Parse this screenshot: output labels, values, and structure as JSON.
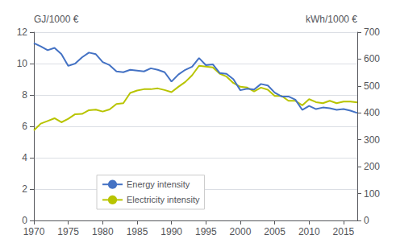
{
  "chart_data": {
    "type": "line",
    "x": [
      1970,
      1971,
      1972,
      1973,
      1974,
      1975,
      1976,
      1977,
      1978,
      1979,
      1980,
      1981,
      1982,
      1983,
      1984,
      1985,
      1986,
      1987,
      1988,
      1989,
      1990,
      1991,
      1992,
      1993,
      1994,
      1995,
      1996,
      1997,
      1998,
      1999,
      2000,
      2001,
      2002,
      2003,
      2004,
      2005,
      2006,
      2007,
      2008,
      2009,
      2010,
      2011,
      2012,
      2013,
      2014,
      2015,
      2016,
      2017
    ],
    "series": [
      {
        "name": "Energy intensity",
        "color": "#4472c4",
        "values": [
          11.3,
          11.1,
          10.85,
          11.0,
          10.6,
          9.85,
          10.0,
          10.4,
          10.7,
          10.6,
          10.1,
          9.9,
          9.5,
          9.45,
          9.6,
          9.55,
          9.5,
          9.7,
          9.6,
          9.45,
          8.85,
          9.3,
          9.6,
          9.8,
          10.35,
          9.9,
          9.95,
          9.4,
          9.35,
          9.0,
          8.3,
          8.4,
          8.35,
          8.7,
          8.6,
          8.15,
          7.9,
          7.9,
          7.7,
          7.05,
          7.3,
          7.1,
          7.2,
          7.15,
          7.05,
          7.1,
          7.0,
          6.85
        ]
      },
      {
        "name": "Electricity intensity",
        "color": "#b8c400",
        "axis": "y2",
        "values": [
          335,
          360,
          370,
          380,
          365,
          378,
          395,
          396,
          410,
          412,
          405,
          413,
          433,
          436,
          474,
          483,
          488,
          488,
          491,
          485,
          477,
          497,
          515,
          540,
          575,
          572,
          569,
          546,
          535,
          511,
          497,
          494,
          480,
          494,
          486,
          463,
          463,
          445,
          445,
          428,
          451,
          440,
          436,
          445,
          436,
          442,
          442,
          439
        ]
      }
    ],
    "ylabel": "GJ/1000 €",
    "y2label": "kWh/1000 €",
    "xlim": [
      1970,
      2017
    ],
    "xticks": [
      1970,
      1975,
      1980,
      1985,
      1990,
      1995,
      2000,
      2005,
      2010,
      2015
    ],
    "ylim": [
      0,
      12
    ],
    "yticks": [
      0,
      2,
      4,
      6,
      8,
      10,
      12
    ],
    "y2lim": [
      0,
      700
    ],
    "y2ticks": [
      0,
      100,
      200,
      300,
      400,
      500,
      600,
      700
    ],
    "grid": true,
    "legend": "lower left"
  }
}
